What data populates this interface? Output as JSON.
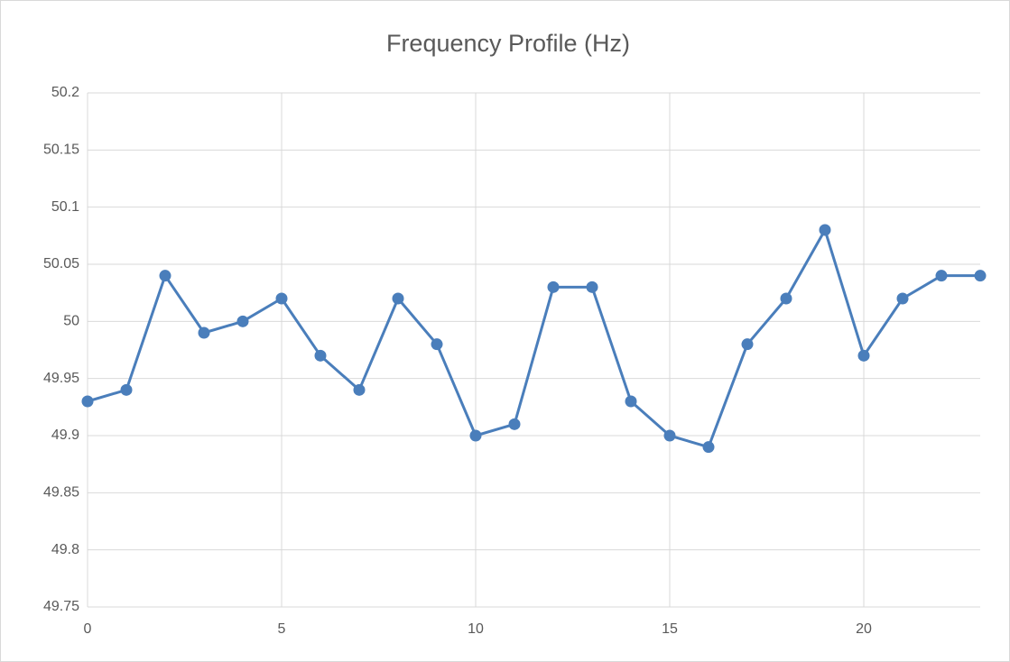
{
  "chart_data": {
    "type": "line",
    "title": "Frequency Profile (Hz)",
    "x": [
      0,
      1,
      2,
      3,
      4,
      5,
      6,
      7,
      8,
      9,
      10,
      11,
      12,
      13,
      14,
      15,
      16,
      17,
      18,
      19,
      20,
      21,
      22,
      23
    ],
    "series": [
      {
        "color": "#4a7ebb",
        "values": [
          49.93,
          49.94,
          50.04,
          49.99,
          50.0,
          50.02,
          49.97,
          49.94,
          50.02,
          49.98,
          49.9,
          49.91,
          50.03,
          50.03,
          49.93,
          49.9,
          49.89,
          49.98,
          50.02,
          50.08,
          49.97,
          50.02,
          50.04,
          50.04
        ]
      }
    ],
    "xlim": [
      0,
      23
    ],
    "xticks": [
      0,
      5,
      10,
      15,
      20
    ],
    "ylim": [
      49.75,
      50.2
    ],
    "yticks": [
      49.75,
      49.8,
      49.85,
      49.9,
      49.95,
      50,
      50.05,
      50.1,
      50.15,
      50.2
    ],
    "grid": true,
    "markers": true
  }
}
